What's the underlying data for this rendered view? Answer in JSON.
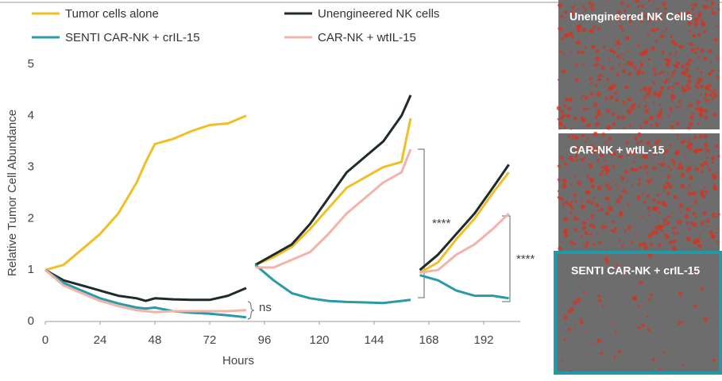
{
  "chart_data": {
    "type": "line",
    "x_label": "Hours",
    "y_label": "Relative Tumor Cell Abundance",
    "x": [
      0,
      8,
      16,
      24,
      32,
      40,
      44,
      48,
      56,
      64,
      72,
      80,
      88,
      90,
      92,
      100,
      108,
      116,
      124,
      132,
      140,
      148,
      156,
      160,
      162,
      164,
      172,
      180,
      188,
      196,
      203
    ],
    "series": [
      {
        "name": "Tumor cells alone",
        "color": "#f0bf27",
        "values": [
          1.0,
          1.1,
          1.4,
          1.7,
          2.1,
          2.7,
          3.1,
          3.45,
          3.55,
          3.7,
          3.82,
          3.85,
          4.0,
          null,
          1.1,
          1.25,
          1.45,
          1.8,
          2.2,
          2.6,
          2.8,
          3.0,
          3.1,
          3.95,
          null,
          0.95,
          1.15,
          1.6,
          2.0,
          2.5,
          2.9
        ]
      },
      {
        "name": "Unengineered NK cells",
        "color": "#1f2a2c",
        "values": [
          1.0,
          0.8,
          0.7,
          0.6,
          0.5,
          0.45,
          0.4,
          0.45,
          0.43,
          0.42,
          0.42,
          0.5,
          0.65,
          null,
          1.1,
          1.3,
          1.5,
          1.9,
          2.4,
          2.9,
          3.2,
          3.5,
          4.0,
          4.4,
          null,
          1.0,
          1.3,
          1.7,
          2.1,
          2.6,
          3.05
        ]
      },
      {
        "name": "SENTI CAR-NK + crIL-15",
        "color": "#2a9aa6",
        "values": [
          1.0,
          0.75,
          0.6,
          0.45,
          0.35,
          0.27,
          0.25,
          0.27,
          0.2,
          0.17,
          0.15,
          0.12,
          0.08,
          null,
          1.1,
          0.8,
          0.55,
          0.45,
          0.4,
          0.38,
          0.37,
          0.36,
          0.4,
          0.42,
          null,
          0.9,
          0.8,
          0.6,
          0.5,
          0.5,
          0.45
        ]
      },
      {
        "name": "CAR-NK + wtIL-15",
        "color": "#f2b3a8",
        "values": [
          1.0,
          0.7,
          0.55,
          0.4,
          0.3,
          0.22,
          0.2,
          0.18,
          0.2,
          0.2,
          0.2,
          0.2,
          0.22,
          null,
          1.05,
          1.05,
          1.2,
          1.35,
          1.7,
          2.1,
          2.4,
          2.7,
          2.9,
          3.35,
          null,
          0.95,
          1.0,
          1.3,
          1.5,
          1.8,
          2.1
        ]
      }
    ],
    "xlim": [
      0,
      208
    ],
    "ylim": [
      0,
      5
    ],
    "xticks": [
      0,
      24,
      48,
      72,
      96,
      120,
      144,
      168,
      192
    ],
    "yticks": [
      0,
      1,
      2,
      3,
      4,
      5
    ],
    "annotations": [
      "ns",
      "****",
      "****"
    ],
    "panels": [
      "Unengineered NK Cells",
      "CAR-NK + wtIL-15",
      "SENTI CAR-NK + crIL-15"
    ]
  }
}
